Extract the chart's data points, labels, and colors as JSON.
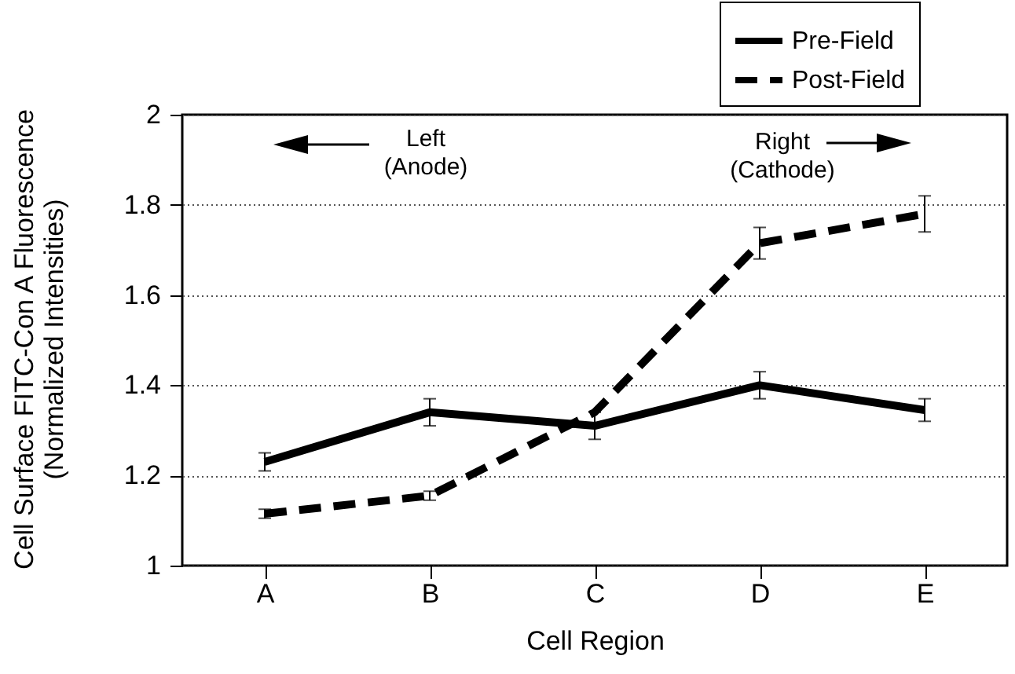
{
  "chart_data": {
    "type": "line",
    "xlabel": "Cell Region",
    "ylabel": "Cell Surface FITC-Con A Fluorescence\n(Normalized Intensities)",
    "categories": [
      "A",
      "B",
      "C",
      "D",
      "E"
    ],
    "series": [
      {
        "name": "Pre-Field",
        "color": "#000000",
        "line_style": "solid",
        "values": [
          1.23,
          1.34,
          1.31,
          1.4,
          1.345
        ],
        "errors": [
          0.02,
          0.03,
          0.03,
          0.03,
          0.025
        ]
      },
      {
        "name": "Post-Field",
        "color": "#000000",
        "line_style": "dashed",
        "values": [
          1.115,
          1.155,
          1.34,
          1.715,
          1.78
        ],
        "errors": [
          0.01,
          0.01,
          null,
          0.035,
          0.04
        ]
      }
    ],
    "ylim": [
      1,
      2
    ],
    "yticks": [
      {
        "value": 1,
        "label": "1"
      },
      1.2,
      1.4,
      1.6,
      1.8,
      {
        "value": 2,
        "label": "2"
      }
    ],
    "grid": "y",
    "legend": "top right",
    "marker": "none",
    "annotations": [
      "Left\n(Anode)",
      "Right\n(Cathode)"
    ]
  }
}
